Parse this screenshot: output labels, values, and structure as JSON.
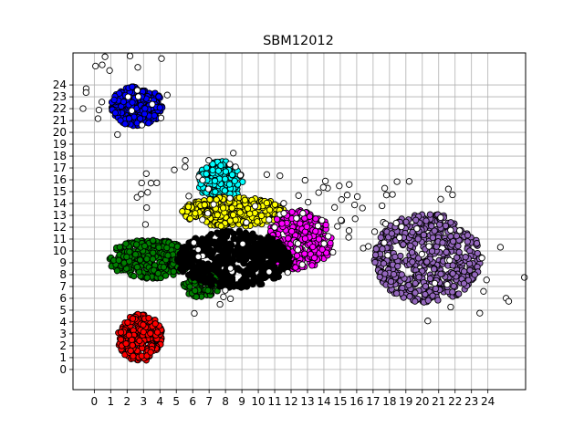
{
  "chart_data": {
    "type": "scatter",
    "title": "SBM12012",
    "xlabel": "",
    "ylabel": "",
    "xlim": [
      -1.3,
      26.3
    ],
    "ylim": [
      -1.7,
      26.7
    ],
    "xticks": [
      0,
      1,
      2,
      3,
      4,
      5,
      6,
      7,
      8,
      9,
      10,
      11,
      12,
      13,
      14,
      15,
      16,
      17,
      18,
      19,
      20,
      21,
      22,
      23,
      24
    ],
    "yticks": [
      0,
      1,
      2,
      3,
      4,
      5,
      6,
      7,
      8,
      9,
      10,
      11,
      12,
      13,
      14,
      15,
      16,
      17,
      18,
      19,
      20,
      21,
      22,
      23,
      24
    ],
    "grid": true,
    "legend": "none",
    "series": [
      {
        "color": "#0000ff",
        "cx": 2.6,
        "cy": 22.2,
        "rx": 1.5,
        "ry": 1.6,
        "n": 280,
        "seed": 11
      },
      {
        "color": "#ff0000",
        "cx": 2.8,
        "cy": 2.7,
        "rx": 1.3,
        "ry": 1.9,
        "n": 260,
        "seed": 22
      },
      {
        "color": "#008000",
        "cx": 3.4,
        "cy": 9.3,
        "rx": 2.4,
        "ry": 1.6,
        "n": 320,
        "seed": 33
      },
      {
        "color": "#008000",
        "cx": 6.6,
        "cy": 7.2,
        "rx": 1.1,
        "ry": 1.2,
        "n": 90,
        "seed": 34
      },
      {
        "color": "#00ffff",
        "cx": 7.7,
        "cy": 15.9,
        "rx": 1.3,
        "ry": 1.6,
        "n": 170,
        "seed": 44
      },
      {
        "color": "#ffff00",
        "cx": 8.5,
        "cy": 13.3,
        "rx": 3.0,
        "ry": 1.2,
        "n": 320,
        "seed": 55
      },
      {
        "color": "#ff00ff",
        "cx": 12.5,
        "cy": 10.9,
        "rx": 1.9,
        "ry": 2.4,
        "n": 300,
        "seed": 66
      },
      {
        "color": "#9467bd",
        "cx": 20.3,
        "cy": 9.4,
        "rx": 3.1,
        "ry": 3.6,
        "n": 520,
        "seed": 77
      },
      {
        "color": "#000000",
        "cx": 8.5,
        "cy": 9.3,
        "rx": 3.3,
        "ry": 2.3,
        "n": 520,
        "seed": 88
      },
      {
        "color": "#ffffff",
        "noise": true,
        "n": 150,
        "seed": 99
      }
    ]
  }
}
